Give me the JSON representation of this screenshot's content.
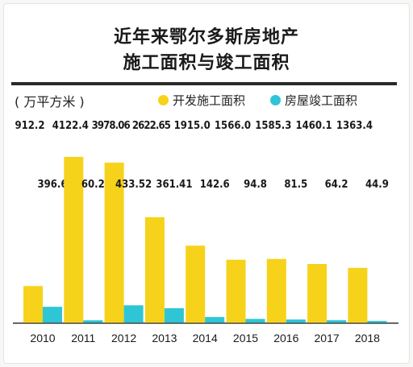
{
  "title_line1": "近年来鄂尔多斯房地产",
  "title_line2": "施工面积与竣工面积",
  "unit": "( 万平方米 )",
  "colors": {
    "construction": "#f7d21a",
    "completion": "#2ec6d6",
    "axis": "#2a2a2a"
  },
  "chart_data": {
    "type": "bar",
    "categories": [
      "2010",
      "2011",
      "2012",
      "2013",
      "2014",
      "2015",
      "2016",
      "2017",
      "2018"
    ],
    "series": [
      {
        "name": "开发施工面积",
        "values": [
          912.2,
          4122.4,
          3978.06,
          2622.65,
          1915.0,
          1566.0,
          1585.3,
          1460.1,
          1363.4
        ],
        "labels": [
          "912.2",
          "4122.4",
          "3978.06",
          "2622.65",
          "1915.0",
          "1566.0",
          "1585.3",
          "1460.1",
          "1363.4"
        ]
      },
      {
        "name": "房屋竣工面积",
        "values": [
          396.6,
          60.2,
          433.52,
          361.41,
          142.6,
          94.8,
          81.5,
          64.2,
          44.9
        ],
        "labels": [
          "396.6",
          "60.2",
          "433.52",
          "361.41",
          "142.6",
          "94.8",
          "81.5",
          "64.2",
          "44.9"
        ]
      }
    ],
    "ylim": [
      0,
      4800
    ]
  }
}
